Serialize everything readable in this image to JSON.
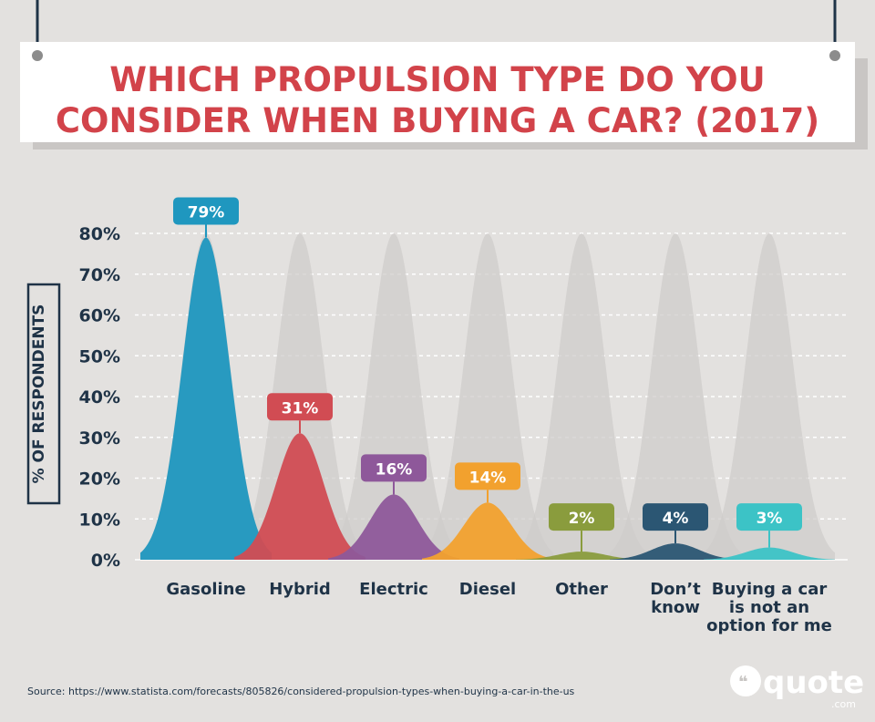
{
  "title_line1": "WHICH PROPULSION TYPE DO YOU",
  "title_line2": "CONSIDER WHEN BUYING A CAR? (2017)",
  "source_text": "Source: https://www.statista.com/forecasts/805826/considered-propulsion-types-when-buying-a-car-in-the-us",
  "logo": {
    "text": "quote",
    "suffix": ".com"
  },
  "colors": {
    "background": "#e3e1df",
    "title": "#d2434a",
    "text": "#1f3347",
    "ghost": "#cfcccb",
    "grid": "#ffffff"
  },
  "chart_data": {
    "type": "area",
    "title": "WHICH PROPULSION TYPE DO YOU CONSIDER WHEN BUYING A CAR? (2017)",
    "ylabel": "% OF RESPONDENTS",
    "xlabel": "",
    "ylim": [
      0,
      80
    ],
    "yticks": [
      "0%",
      "10%",
      "20%",
      "30%",
      "40%",
      "50%",
      "60%",
      "70%",
      "80%"
    ],
    "grid": true,
    "categories": [
      [
        "Gasoline"
      ],
      [
        "Hybrid"
      ],
      [
        "Electric"
      ],
      [
        "Diesel"
      ],
      [
        "Other"
      ],
      [
        "Don’t",
        "know"
      ],
      [
        "Buying a car",
        "is not an",
        "option for me"
      ]
    ],
    "values": [
      79,
      31,
      16,
      14,
      2,
      4,
      3
    ],
    "value_labels": [
      "79%",
      "31%",
      "16%",
      "14%",
      "2%",
      "4%",
      "3%"
    ],
    "colors": [
      "#1f97bf",
      "#d14c53",
      "#8e589a",
      "#f2a12e",
      "#8a9c3d",
      "#2b5673",
      "#3cc3c6"
    ]
  }
}
